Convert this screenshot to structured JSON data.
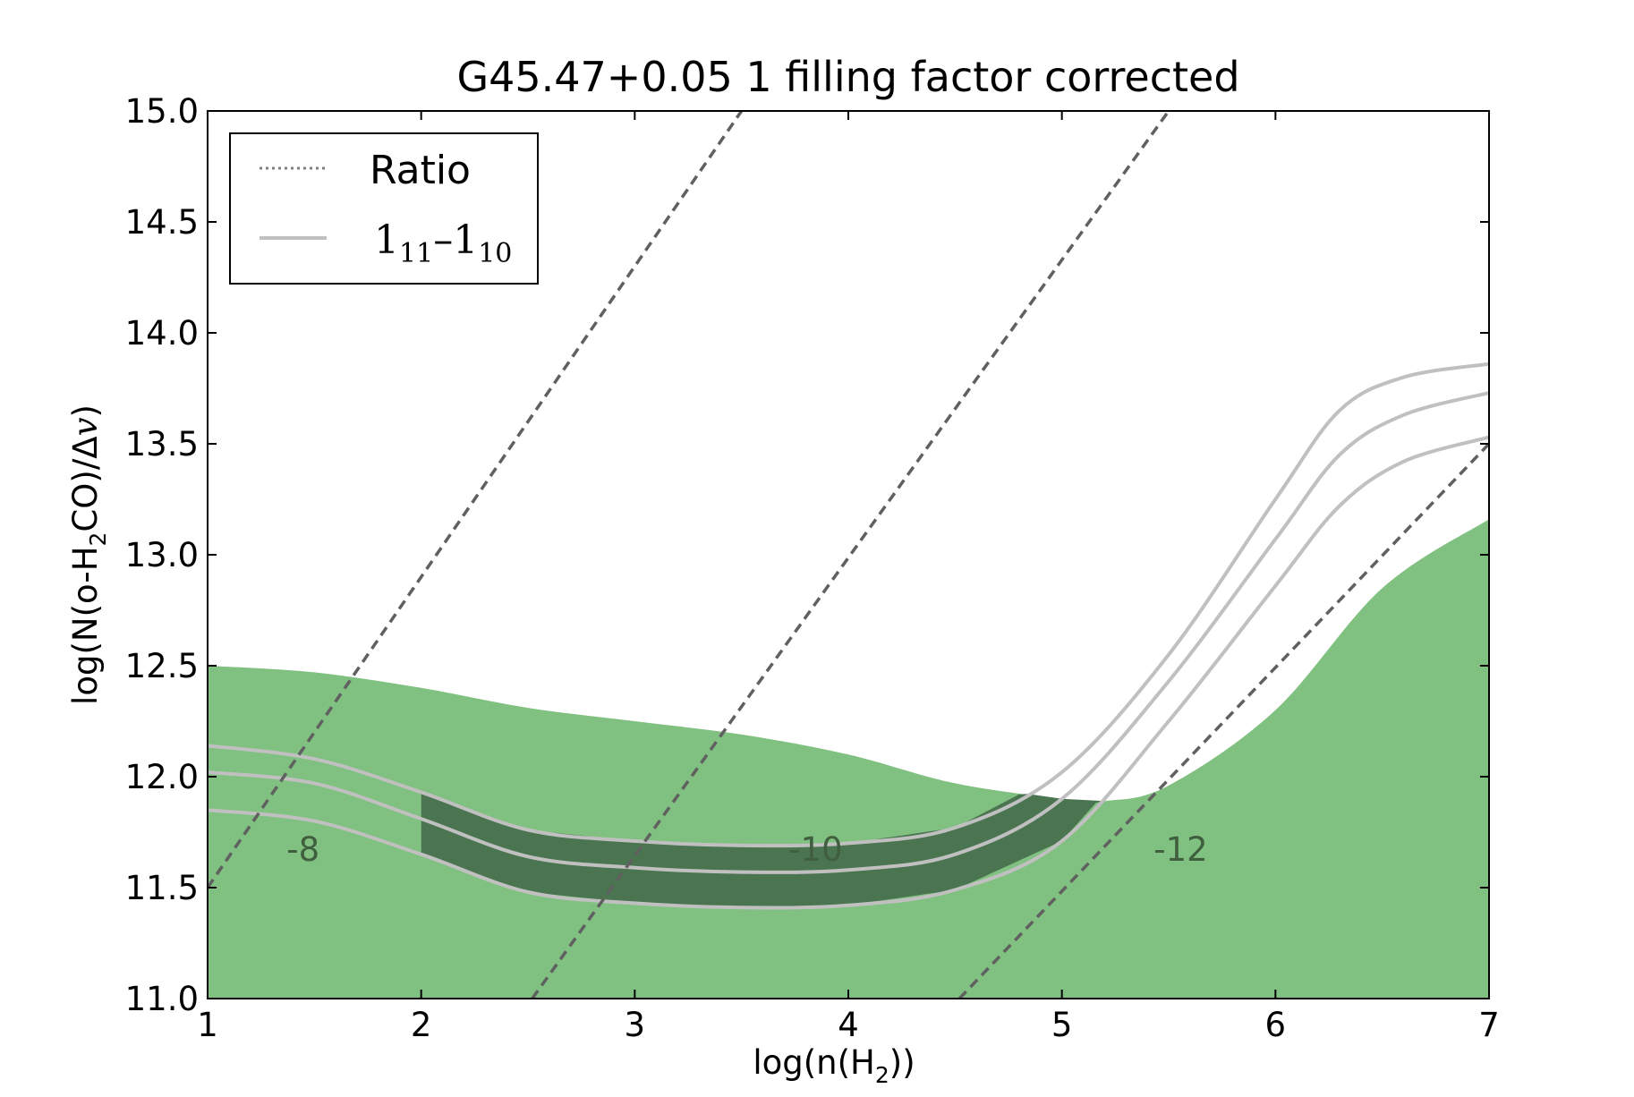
{
  "chart_data": {
    "type": "line",
    "title": "G45.47+0.05 1 filling factor corrected",
    "xlabel": "log(n(H2))",
    "ylabel": "log(N(o-H2CO)/Δv)",
    "xlim": [
      1,
      7
    ],
    "ylim": [
      11.0,
      15.0
    ],
    "x_ticks": [
      "1",
      "2",
      "3",
      "4",
      "5",
      "6",
      "7"
    ],
    "y_ticks": [
      "11.0",
      "11.5",
      "12.0",
      "12.5",
      "13.0",
      "13.5",
      "14.0",
      "14.5",
      "15.0"
    ],
    "legend": {
      "placement": "top-left",
      "entries": [
        {
          "label": "Ratio",
          "style": "dotted",
          "color": "#808080"
        },
        {
          "label": "1_11–1_10",
          "style": "solid",
          "color": "#c0c0c0"
        }
      ]
    },
    "colors": {
      "region_fill": "#80c080",
      "overlap_fill": "#4a7550",
      "line_11_10": "#c0c0c0",
      "ratio_lines": "#606060",
      "ratio_label": "#3f5f3f"
    },
    "green_region_upper": {
      "x": [
        1,
        1.5,
        2,
        2.5,
        3,
        3.5,
        4,
        4.5,
        5,
        5.2,
        5.5,
        6,
        6.5,
        7
      ],
      "y": [
        12.5,
        12.47,
        12.4,
        12.31,
        12.25,
        12.19,
        12.1,
        11.97,
        11.9,
        11.89,
        11.96,
        12.3,
        12.85,
        13.16
      ]
    },
    "ratio_contours": [
      {
        "label": "-8",
        "x": [
          1,
          3.5
        ],
        "y": [
          11.5,
          15.0
        ],
        "label_at": [
          1.37,
          11.62
        ]
      },
      {
        "label": "-10",
        "x": [
          2.52,
          5.5
        ],
        "y": [
          11.0,
          15.0
        ],
        "label_at": [
          3.72,
          11.62
        ]
      },
      {
        "label": "-12",
        "x": [
          4.52,
          7.0
        ],
        "y": [
          11.0,
          13.5
        ],
        "label_at": [
          5.43,
          11.62
        ]
      }
    ],
    "line_11_10_series": [
      {
        "x": [
          1,
          1.5,
          2,
          2.5,
          3,
          3.5,
          4,
          4.5,
          5,
          5.5,
          6,
          6.3,
          6.6,
          7
        ],
        "y": [
          12.14,
          12.08,
          11.93,
          11.76,
          11.71,
          11.69,
          11.7,
          11.77,
          12.02,
          12.55,
          13.25,
          13.65,
          13.8,
          13.86
        ]
      },
      {
        "x": [
          1,
          1.5,
          2,
          2.5,
          3,
          3.5,
          4,
          4.5,
          5,
          5.5,
          6,
          6.3,
          6.6,
          7
        ],
        "y": [
          12.02,
          11.97,
          11.81,
          11.64,
          11.59,
          11.57,
          11.58,
          11.65,
          11.9,
          12.43,
          13.07,
          13.45,
          13.63,
          13.73
        ]
      },
      {
        "x": [
          1,
          1.5,
          2,
          2.5,
          3,
          3.5,
          4,
          4.5,
          5,
          5.5,
          6,
          6.3,
          6.6,
          7
        ],
        "y": [
          11.85,
          11.8,
          11.65,
          11.48,
          11.43,
          11.41,
          11.42,
          11.49,
          11.71,
          12.25,
          12.86,
          13.22,
          13.42,
          13.53
        ]
      }
    ],
    "overlap_region": {
      "x_min": 2,
      "x_max": 5.2
    }
  }
}
